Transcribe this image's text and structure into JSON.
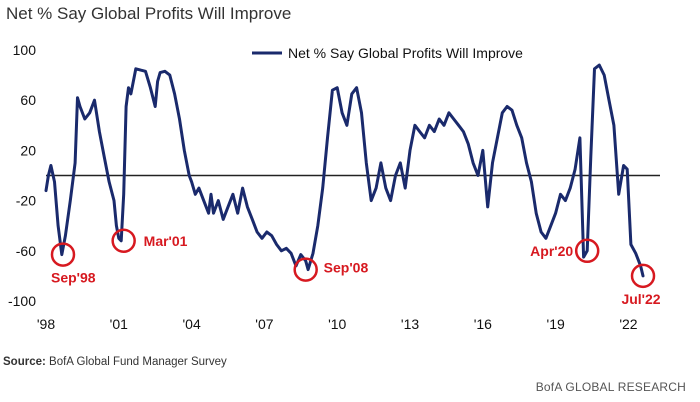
{
  "title": "Net % Say Global Profits Will Improve",
  "source_label": "Source:",
  "source_text": "BofA Global Fund Manager Survey",
  "brand": "BofA GLOBAL RESEARCH",
  "colors": {
    "series": "#1a2a6c",
    "annotation": "#d71920",
    "zero_line": "#222222"
  },
  "chart_data": {
    "type": "line",
    "title": "Net % Say Global Profits Will Improve",
    "xlabel": "",
    "ylabel": "",
    "ylim": [
      -100,
      100
    ],
    "xlim": [
      1998.0,
      2023.3
    ],
    "y_ticks": [
      100,
      60,
      20,
      -20,
      -60,
      -100
    ],
    "x_ticks": [
      {
        "year": 1998,
        "label": "'98"
      },
      {
        "year": 2001,
        "label": "'01"
      },
      {
        "year": 2004,
        "label": "'04"
      },
      {
        "year": 2007,
        "label": "'07"
      },
      {
        "year": 2010,
        "label": "'10"
      },
      {
        "year": 2013,
        "label": "'13"
      },
      {
        "year": 2016,
        "label": "'16"
      },
      {
        "year": 2019,
        "label": "'19"
      },
      {
        "year": 2022,
        "label": "'22"
      }
    ],
    "legend": "top",
    "grid": false,
    "zero_line": 0,
    "series": [
      {
        "name": "Net % Say Global Profits Will Improve",
        "x": [
          1998.0,
          1998.1,
          1998.2,
          1998.35,
          1998.5,
          1998.65,
          1998.8,
          1999.0,
          1999.2,
          1999.3,
          1999.4,
          1999.6,
          1999.8,
          2000.0,
          2000.2,
          2000.4,
          2000.6,
          2000.8,
          2000.9,
          2001.0,
          2001.1,
          2001.2,
          2001.3,
          2001.4,
          2001.5,
          2001.7,
          2001.9,
          2002.1,
          2002.3,
          2002.5,
          2002.6,
          2002.7,
          2002.9,
          2003.1,
          2003.3,
          2003.5,
          2003.7,
          2003.9,
          2004.0,
          2004.15,
          2004.3,
          2004.5,
          2004.7,
          2004.8,
          2004.9,
          2005.1,
          2005.3,
          2005.5,
          2005.7,
          2005.9,
          2006.1,
          2006.3,
          2006.5,
          2006.7,
          2006.9,
          2007.1,
          2007.3,
          2007.5,
          2007.7,
          2007.9,
          2008.1,
          2008.3,
          2008.5,
          2008.7,
          2008.8,
          2009.0,
          2009.2,
          2009.4,
          2009.6,
          2009.8,
          2010.0,
          2010.2,
          2010.4,
          2010.6,
          2010.8,
          2011.0,
          2011.2,
          2011.4,
          2011.6,
          2011.8,
          2012.0,
          2012.2,
          2012.4,
          2012.6,
          2012.8,
          2013.0,
          2013.2,
          2013.4,
          2013.6,
          2013.8,
          2014.0,
          2014.2,
          2014.4,
          2014.6,
          2014.8,
          2015.0,
          2015.2,
          2015.4,
          2015.6,
          2015.8,
          2016.0,
          2016.2,
          2016.4,
          2016.6,
          2016.8,
          2017.0,
          2017.2,
          2017.4,
          2017.6,
          2017.8,
          2018.0,
          2018.2,
          2018.4,
          2018.6,
          2018.8,
          2019.0,
          2019.2,
          2019.4,
          2019.6,
          2019.8,
          2020.0,
          2020.15,
          2020.3,
          2020.45,
          2020.6,
          2020.8,
          2021.0,
          2021.2,
          2021.4,
          2021.6,
          2021.8,
          2021.95,
          2022.1,
          2022.3,
          2022.5,
          2022.6
        ],
        "y": [
          -12,
          0,
          8,
          -5,
          -40,
          -63,
          -48,
          -20,
          10,
          62,
          55,
          45,
          50,
          60,
          35,
          15,
          -5,
          -20,
          -40,
          -50,
          -52,
          -15,
          55,
          70,
          65,
          85,
          84,
          83,
          70,
          55,
          75,
          82,
          83,
          80,
          65,
          45,
          20,
          0,
          -5,
          -15,
          -10,
          -20,
          -30,
          -15,
          -30,
          -20,
          -35,
          -25,
          -15,
          -30,
          -10,
          -25,
          -35,
          -45,
          -50,
          -45,
          -48,
          -55,
          -60,
          -58,
          -62,
          -72,
          -63,
          -68,
          -75,
          -62,
          -40,
          -10,
          30,
          68,
          70,
          50,
          40,
          65,
          70,
          50,
          10,
          -20,
          -10,
          10,
          -10,
          -20,
          0,
          10,
          -10,
          20,
          40,
          35,
          30,
          40,
          35,
          45,
          40,
          50,
          45,
          40,
          35,
          25,
          10,
          0,
          20,
          -25,
          10,
          30,
          50,
          55,
          52,
          40,
          30,
          10,
          -5,
          -30,
          -45,
          -50,
          -40,
          -30,
          -15,
          -20,
          -10,
          5,
          30,
          -65,
          -60,
          15,
          85,
          88,
          80,
          60,
          40,
          -15,
          8,
          5,
          -55,
          -62,
          -72,
          -80
        ],
        "color": "#1a2a6c"
      }
    ],
    "annotations": [
      {
        "label": "Sep'98",
        "x": 1998.7,
        "y": -63
      },
      {
        "label": "Mar'01",
        "x": 2001.2,
        "y": -52
      },
      {
        "label": "Sep'08",
        "x": 2008.7,
        "y": -75
      },
      {
        "label": "Apr'20",
        "x": 2020.3,
        "y": -60
      },
      {
        "label": "Jul'22",
        "x": 2022.6,
        "y": -80
      }
    ]
  }
}
